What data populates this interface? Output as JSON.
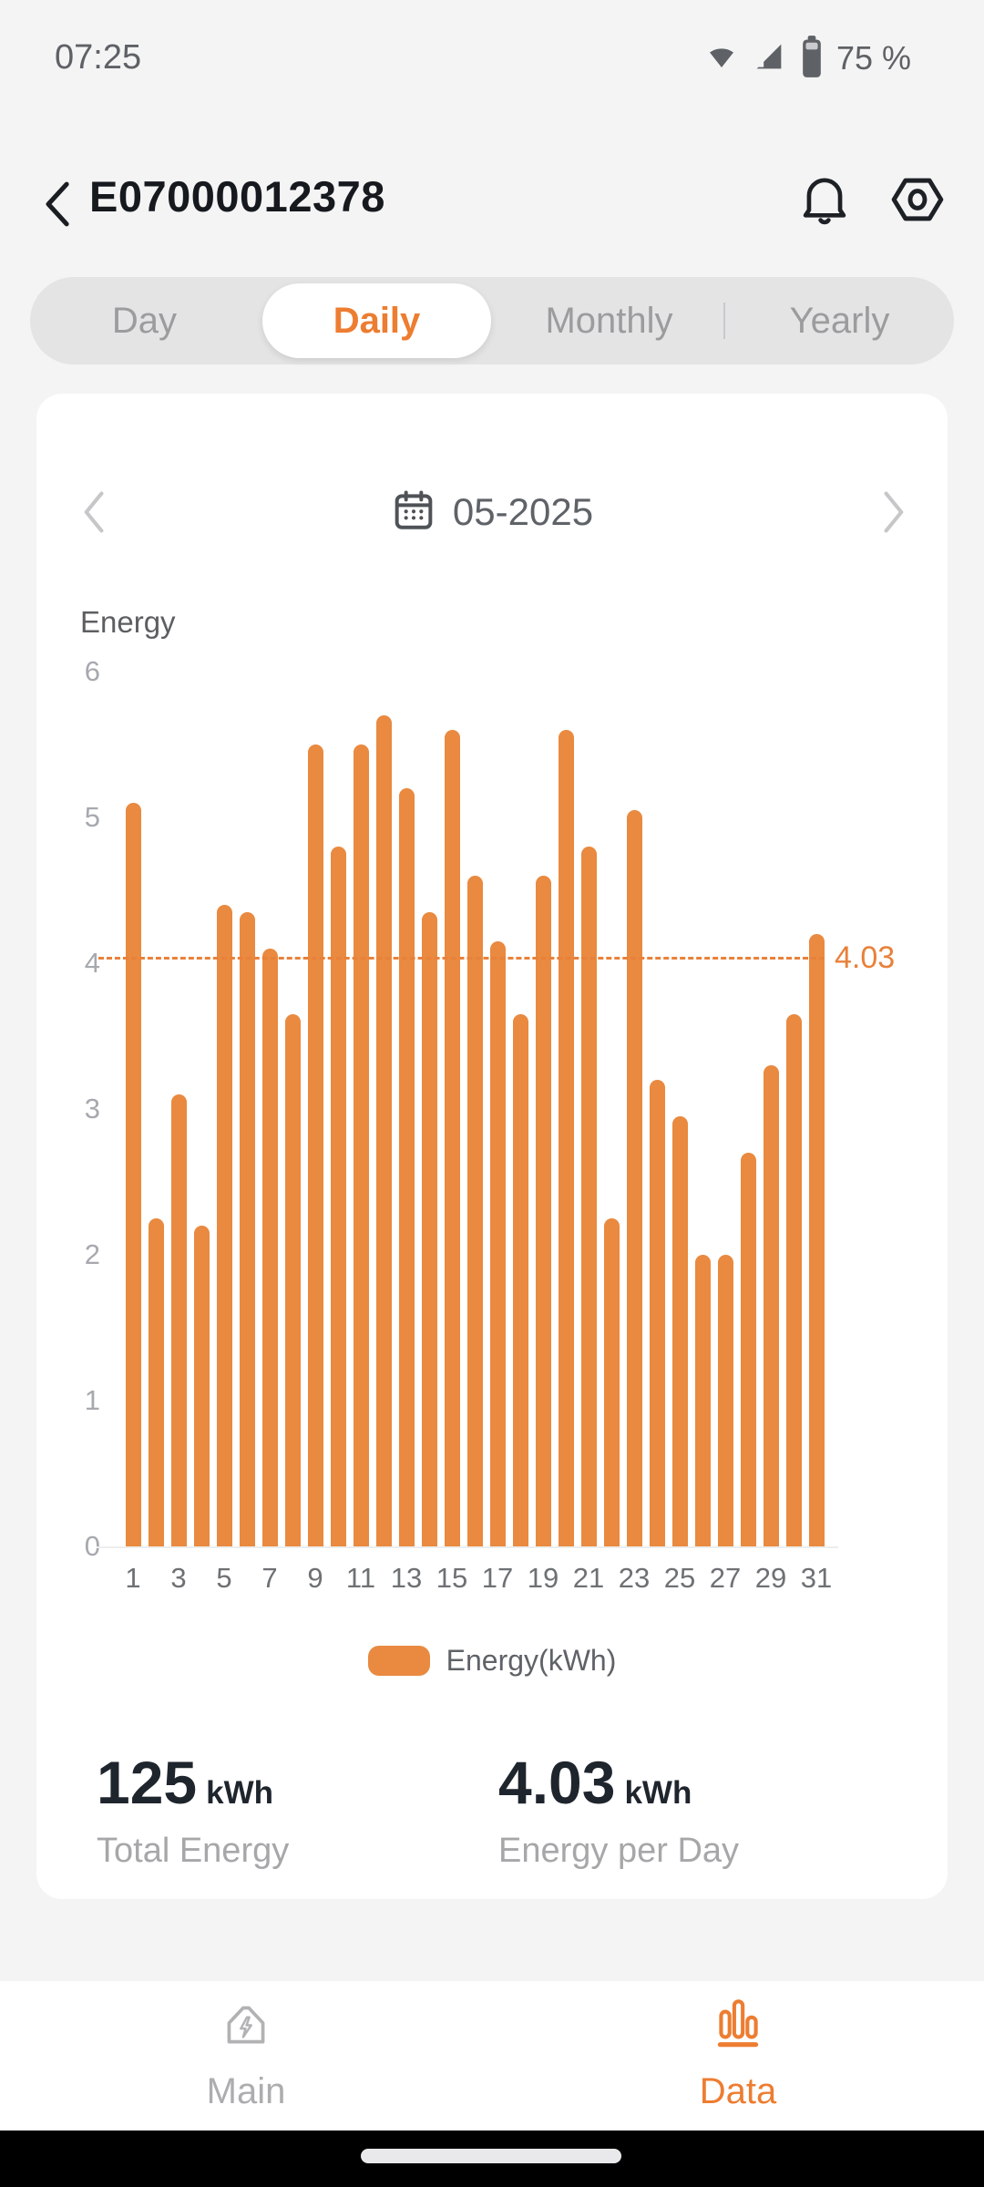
{
  "accent": {
    "orange": "#ED7D31",
    "bar_orange": "#E98A40",
    "page_bg": "#F4F4F5"
  },
  "status_bar": {
    "time": "07:25",
    "battery_percent": "75 %"
  },
  "header": {
    "title": "E07000012378"
  },
  "tabs": {
    "items": [
      {
        "label": "Day",
        "active": false
      },
      {
        "label": "Daily",
        "active": true
      },
      {
        "label": "Monthly",
        "active": false
      },
      {
        "label": "Yearly",
        "active": false
      }
    ]
  },
  "date_nav": {
    "label": "05-2025"
  },
  "chart_data": {
    "type": "bar",
    "title": "Energy",
    "unit": "kWh",
    "x": [
      1,
      2,
      3,
      4,
      5,
      6,
      7,
      8,
      9,
      10,
      11,
      12,
      13,
      14,
      15,
      16,
      17,
      18,
      19,
      20,
      21,
      22,
      23,
      24,
      25,
      26,
      27,
      28,
      29,
      30,
      31
    ],
    "values": [
      5.1,
      2.25,
      3.1,
      2.2,
      4.4,
      4.35,
      4.1,
      3.65,
      5.5,
      4.8,
      5.5,
      5.7,
      5.2,
      4.35,
      5.6,
      4.6,
      4.15,
      3.65,
      4.6,
      5.6,
      4.8,
      2.25,
      5.05,
      3.2,
      2.95,
      2.0,
      2.0,
      2.7,
      3.3,
      3.65,
      4.2
    ],
    "ylim": [
      0,
      6
    ],
    "yticks": [
      0,
      1,
      2,
      3,
      4,
      5,
      6
    ],
    "xtick_step": 2,
    "average_line": {
      "value": 4.03,
      "label": "4.03"
    },
    "legend": [
      {
        "label": "Energy(kWh)",
        "color": "#E98A40"
      }
    ],
    "grid": false,
    "legend_position": "bottom"
  },
  "stats": [
    {
      "value": "125",
      "unit": "kWh",
      "label": "Total Energy"
    },
    {
      "value": "4.03",
      "unit": "kWh",
      "label": "Energy per Day"
    }
  ],
  "bottom_nav": {
    "items": [
      {
        "label": "Main",
        "icon": "home-energy-icon",
        "active": false
      },
      {
        "label": "Data",
        "icon": "bar-chart-icon",
        "active": true
      }
    ]
  }
}
